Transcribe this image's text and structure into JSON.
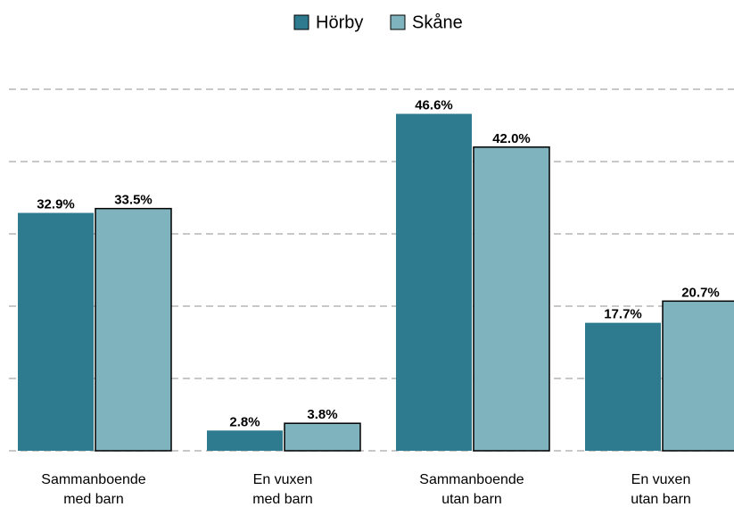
{
  "chart_data": {
    "type": "bar",
    "categories": [
      [
        "Sammanboende",
        "med barn"
      ],
      [
        "En vuxen",
        "med barn"
      ],
      [
        "Sammanboende",
        "utan barn"
      ],
      [
        "En vuxen",
        "utan barn"
      ]
    ],
    "series": [
      {
        "name": "Hörby",
        "color": "#2e7a8e",
        "values": [
          32.9,
          2.8,
          46.6,
          17.7
        ],
        "value_labels": [
          "32.9%",
          "2.8%",
          "46.6%",
          "17.7%"
        ]
      },
      {
        "name": "Skåne",
        "color": "#7fb3bd",
        "values": [
          33.5,
          3.8,
          42.0,
          20.7
        ],
        "value_labels": [
          "33.5%",
          "3.8%",
          "42.0%",
          "20.7%"
        ]
      }
    ],
    "ylim": [
      0,
      50
    ],
    "yticks": [
      0,
      10,
      20,
      30,
      40,
      50
    ],
    "grid": true,
    "legend": "top"
  }
}
